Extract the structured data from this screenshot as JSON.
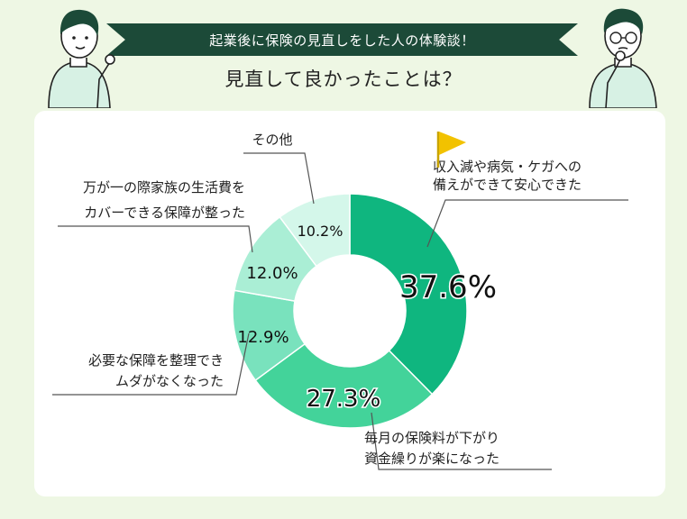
{
  "header": {
    "banner": "起業後に保険の見直しをした人の体験談！",
    "subtitle": "見直して良かったことは？"
  },
  "colors": {
    "background": "#eef7e4",
    "banner": "#1c4a38",
    "slices": [
      "#0fb67f",
      "#43d39a",
      "#79e2bd",
      "#aaeed5",
      "#d4f7ea"
    ]
  },
  "icons": [
    "person-left-icon",
    "person-right-icon",
    "flag-icon"
  ],
  "chart_data": {
    "type": "pie",
    "title": "見直して良かったことは？",
    "categories": [
      "収入減や病気・ケガへの備えができて安心できた",
      "毎月の保険料が下がり資金繰りが楽になった",
      "必要な保障を整理できムダがなくなった",
      "万が一の際家族の生活費をカバーできる保障が整った",
      "その他"
    ],
    "values": [
      37.6,
      27.3,
      12.9,
      12.0,
      10.2
    ],
    "value_labels": [
      "37.6%",
      "27.3%",
      "12.9%",
      "12.0%",
      "10.2%"
    ],
    "callouts": [
      [
        "収入減や病気・ケガへの",
        "備えができて安心できた"
      ],
      [
        "毎月の保険料が下がり",
        "資金繰りが楽になった"
      ],
      [
        "必要な保障を整理でき",
        "ムダがなくなった"
      ],
      [
        "万が一の際家族の生活費を",
        "カバーできる保障が整った"
      ],
      [
        "その他"
      ]
    ],
    "highlight_index": 0
  }
}
